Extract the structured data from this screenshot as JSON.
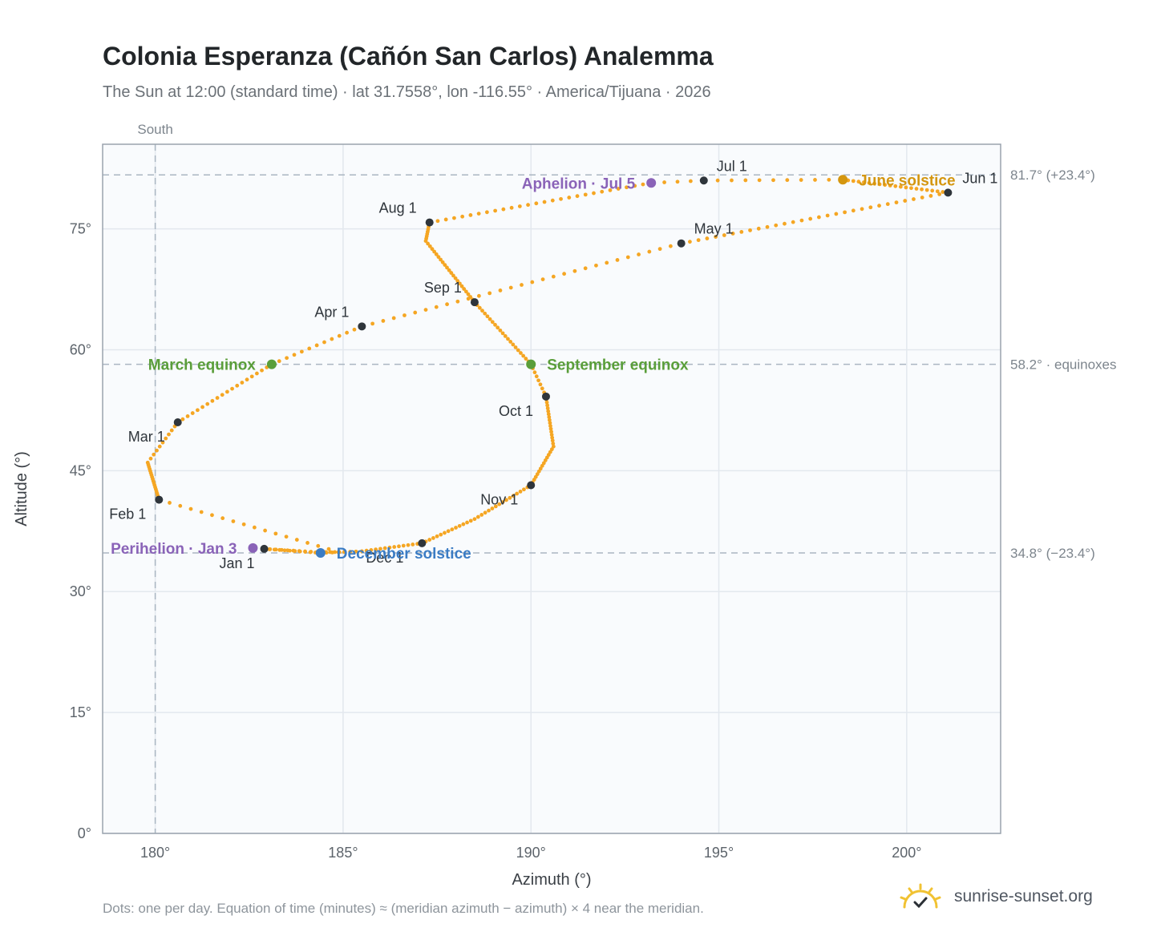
{
  "header": {
    "title": "Colonia Esperanza (Cañón San Carlos) Analemma",
    "subtitle": "The Sun at 12:00 (standard time) · lat 31.7558°, lon -116.55° · America/Tijuana · 2026"
  },
  "footer": {
    "note": "Dots: one per day. Equation of time (minutes) ≈ (meridian azimuth − azimuth) × 4 near the meridian.",
    "brand": "sunrise-sunset.org",
    "brand_icon": "sun-logo-icon"
  },
  "chart_data": {
    "type": "scatter",
    "xlabel": "Azimuth (°)",
    "ylabel": "Altitude (°)",
    "xlim": [
      178.6,
      202.5
    ],
    "ylim": [
      0,
      85.5
    ],
    "x_ticks": [
      180,
      185,
      190,
      195,
      200
    ],
    "x_tick_labels": [
      "180°",
      "185°",
      "190°",
      "195°",
      "200°"
    ],
    "y_ticks": [
      0,
      15,
      30,
      45,
      60,
      75
    ],
    "y_tick_labels": [
      "0°",
      "15°",
      "30°",
      "45°",
      "60°",
      "75°"
    ],
    "grid": true,
    "meridian": {
      "azimuth": 180,
      "label": "South"
    },
    "reference_lines": [
      {
        "altitude": 81.7,
        "label": "81.7° (+23.4°)"
      },
      {
        "altitude": 58.2,
        "label": "58.2° · equinoxes"
      },
      {
        "altitude": 34.8,
        "label": "34.8° (−23.4°)"
      }
    ],
    "path_color": "#f5a623",
    "path_anchors": [
      [
        0,
        182.9,
        35.3
      ],
      [
        9,
        184.3,
        34.9
      ],
      [
        14,
        184.9,
        34.9
      ],
      [
        31,
        180.1,
        41.4
      ],
      [
        49,
        179.8,
        46.0
      ],
      [
        59,
        180.6,
        51.0
      ],
      [
        78,
        183.1,
        58.2
      ],
      [
        90,
        185.5,
        62.9
      ],
      [
        120,
        194.0,
        73.2
      ],
      [
        151,
        201.1,
        79.5
      ],
      [
        171,
        198.3,
        81.1
      ],
      [
        181,
        194.6,
        81.0
      ],
      [
        185,
        193.2,
        80.7
      ],
      [
        212,
        187.3,
        75.8
      ],
      [
        220,
        187.2,
        73.5
      ],
      [
        243,
        188.5,
        65.9
      ],
      [
        265,
        190.0,
        58.2
      ],
      [
        273,
        190.4,
        54.2
      ],
      [
        290,
        190.6,
        48.0
      ],
      [
        304,
        190.0,
        43.2
      ],
      [
        320,
        188.5,
        39.0
      ],
      [
        334,
        187.1,
        36.0
      ],
      [
        347,
        185.5,
        35.0
      ],
      [
        354,
        184.4,
        34.8
      ],
      [
        365,
        182.9,
        35.3
      ]
    ],
    "months": [
      {
        "label": "Jan 1",
        "azimuth": 182.9,
        "altitude": 35.3
      },
      {
        "label": "Feb 1",
        "azimuth": 180.1,
        "altitude": 41.4
      },
      {
        "label": "Mar 1",
        "azimuth": 180.6,
        "altitude": 51.0
      },
      {
        "label": "Apr 1",
        "azimuth": 185.5,
        "altitude": 62.9
      },
      {
        "label": "May 1",
        "azimuth": 194.0,
        "altitude": 73.2
      },
      {
        "label": "Jun 1",
        "azimuth": 201.1,
        "altitude": 79.5
      },
      {
        "label": "Jul 1",
        "azimuth": 194.6,
        "altitude": 81.0
      },
      {
        "label": "Aug 1",
        "azimuth": 187.3,
        "altitude": 75.8
      },
      {
        "label": "Sep 1",
        "azimuth": 188.5,
        "altitude": 65.9
      },
      {
        "label": "Oct 1",
        "azimuth": 190.4,
        "altitude": 54.2
      },
      {
        "label": "Nov 1",
        "azimuth": 190.0,
        "altitude": 43.2
      },
      {
        "label": "Dec 1",
        "azimuth": 187.1,
        "altitude": 36.0
      }
    ],
    "events": [
      {
        "label": "March equinox",
        "azimuth": 183.1,
        "altitude": 58.2,
        "color": "#5a9e3a",
        "anchor": "left"
      },
      {
        "label": "June solstice",
        "azimuth": 198.3,
        "altitude": 81.1,
        "color": "#d4960f",
        "anchor": "right"
      },
      {
        "label": "September equinox",
        "azimuth": 190.0,
        "altitude": 58.2,
        "color": "#5a9e3a",
        "anchor": "right"
      },
      {
        "label": "December solstice",
        "azimuth": 184.4,
        "altitude": 34.8,
        "color": "#3b7cc4",
        "anchor": "right"
      },
      {
        "label": "Perihelion · Jan 3",
        "azimuth": 182.6,
        "altitude": 35.4,
        "color": "#8a63b8",
        "anchor": "left"
      },
      {
        "label": "Aphelion · Jul 5",
        "azimuth": 193.2,
        "altitude": 80.7,
        "color": "#8a63b8",
        "anchor": "left"
      }
    ]
  }
}
